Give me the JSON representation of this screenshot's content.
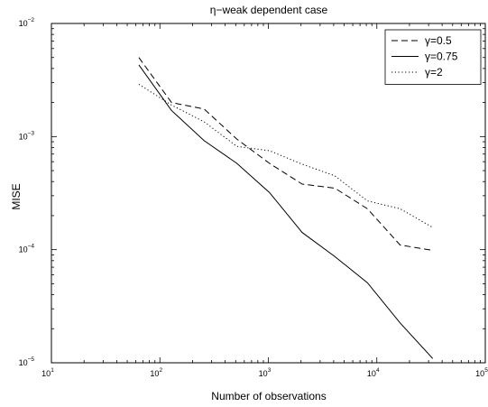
{
  "chart_data": {
    "type": "line",
    "title": "η−weak dependent case",
    "xlabel": "Number of observations",
    "ylabel": "MISE",
    "xscale": "log",
    "yscale": "log",
    "xlim": [
      10,
      100000
    ],
    "ylim": [
      1e-05,
      0.01
    ],
    "x_ticks": [
      {
        "base": "10",
        "exp": "1"
      },
      {
        "base": "10",
        "exp": "2"
      },
      {
        "base": "10",
        "exp": "3"
      },
      {
        "base": "10",
        "exp": "4"
      },
      {
        "base": "10",
        "exp": "5"
      }
    ],
    "y_ticks": [
      {
        "base": "10",
        "exp": "−5"
      },
      {
        "base": "10",
        "exp": "−4"
      },
      {
        "base": "10",
        "exp": "−3"
      },
      {
        "base": "10",
        "exp": "−2"
      }
    ],
    "grid": false,
    "legend_position": "top-right",
    "series": [
      {
        "name": "γ=0.5",
        "style": "dashed",
        "color": "#000000",
        "x": [
          64,
          128,
          256,
          512,
          1024,
          2048,
          4096,
          8192,
          16384,
          32768
        ],
        "y": [
          0.005,
          0.002,
          0.00175,
          0.00095,
          0.00058,
          0.00038,
          0.00035,
          0.00023,
          0.00011,
          9.85e-05
        ]
      },
      {
        "name": "γ=0.75",
        "style": "solid",
        "color": "#000000",
        "x": [
          64,
          128,
          256,
          512,
          1024,
          2048,
          4096,
          8192,
          16384,
          32768
        ],
        "y": [
          0.0043,
          0.0017,
          0.00092,
          0.00058,
          0.00032,
          0.000142,
          8.7e-05,
          5.1e-05,
          2.25e-05,
          1.09e-05
        ]
      },
      {
        "name": "γ=2",
        "style": "dotted",
        "color": "#000000",
        "x": [
          64,
          128,
          256,
          512,
          1024,
          2048,
          4096,
          8192,
          16384,
          32768
        ],
        "y": [
          0.0029,
          0.0019,
          0.00135,
          0.00082,
          0.00075,
          0.00057,
          0.00045,
          0.00027,
          0.00023,
          0.000157
        ]
      }
    ]
  }
}
